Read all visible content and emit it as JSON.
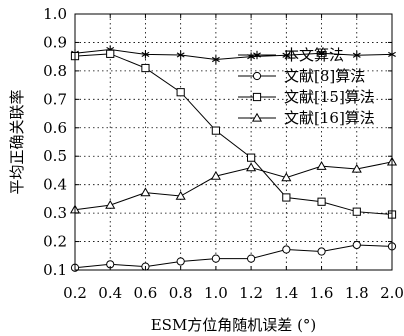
{
  "chart_data": {
    "type": "line",
    "title": "",
    "xlabel": "ESM方位角随机误差 (°)",
    "ylabel": "平均正确关联率",
    "x": [
      0.2,
      0.4,
      0.6,
      0.8,
      1.0,
      1.2,
      1.4,
      1.6,
      1.8,
      2.0
    ],
    "xlim": [
      0.2,
      2.0
    ],
    "ylim": [
      0.1,
      1.0
    ],
    "x_ticks": [
      "0.2",
      "0.4",
      "0.6",
      "0.8",
      "1.0",
      "1.2",
      "1.4",
      "1.6",
      "1.8",
      "2.0"
    ],
    "y_ticks": [
      "0.1",
      "0.2",
      "0.3",
      "0.4",
      "0.5",
      "0.6",
      "0.7",
      "0.8",
      "0.9",
      "1.0"
    ],
    "grid": true,
    "legend_position": "upper-right",
    "series": [
      {
        "name": "本文算法",
        "marker": "star",
        "values": [
          0.862,
          0.875,
          0.858,
          0.856,
          0.84,
          0.85,
          0.855,
          0.862,
          0.855,
          0.858
        ]
      },
      {
        "name": "文献[8]算法",
        "marker": "circle",
        "values": [
          0.108,
          0.12,
          0.112,
          0.13,
          0.14,
          0.14,
          0.172,
          0.165,
          0.188,
          0.183
        ]
      },
      {
        "name": "文献[15]算法",
        "marker": "square",
        "values": [
          0.852,
          0.86,
          0.81,
          0.725,
          0.59,
          0.495,
          0.355,
          0.34,
          0.305,
          0.295
        ]
      },
      {
        "name": "文献[16]算法",
        "marker": "triangle",
        "values": [
          0.312,
          0.328,
          0.372,
          0.36,
          0.43,
          0.46,
          0.425,
          0.465,
          0.455,
          0.48
        ]
      }
    ]
  }
}
